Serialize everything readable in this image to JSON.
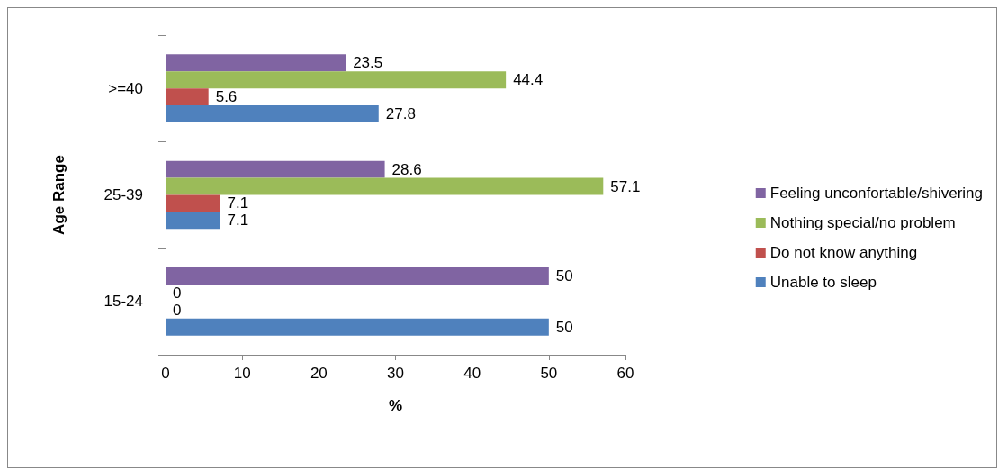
{
  "chart_data": {
    "type": "bar",
    "orientation": "horizontal",
    "xlabel": "%",
    "ylabel": "Age Range",
    "categories": [
      ">=40",
      "25-39",
      "15-24"
    ],
    "series": [
      {
        "name": "Feeling unconfortable/shivering",
        "color": "#8064a2",
        "values": [
          23.5,
          28.6,
          50
        ]
      },
      {
        "name": "Nothing special/no problem",
        "color": "#9bbb59",
        "values": [
          44.4,
          57.1,
          0
        ]
      },
      {
        "name": "Do not know anything",
        "color": "#c0504d",
        "values": [
          5.6,
          7.1,
          0
        ]
      },
      {
        "name": "Unable to sleep",
        "color": "#4f81bd",
        "values": [
          27.8,
          7.1,
          50
        ]
      }
    ],
    "xlim": [
      0,
      60
    ],
    "xticks": [
      0,
      10,
      20,
      30,
      40,
      50,
      60
    ],
    "data_labels": true,
    "grid": false,
    "legend": "right"
  }
}
